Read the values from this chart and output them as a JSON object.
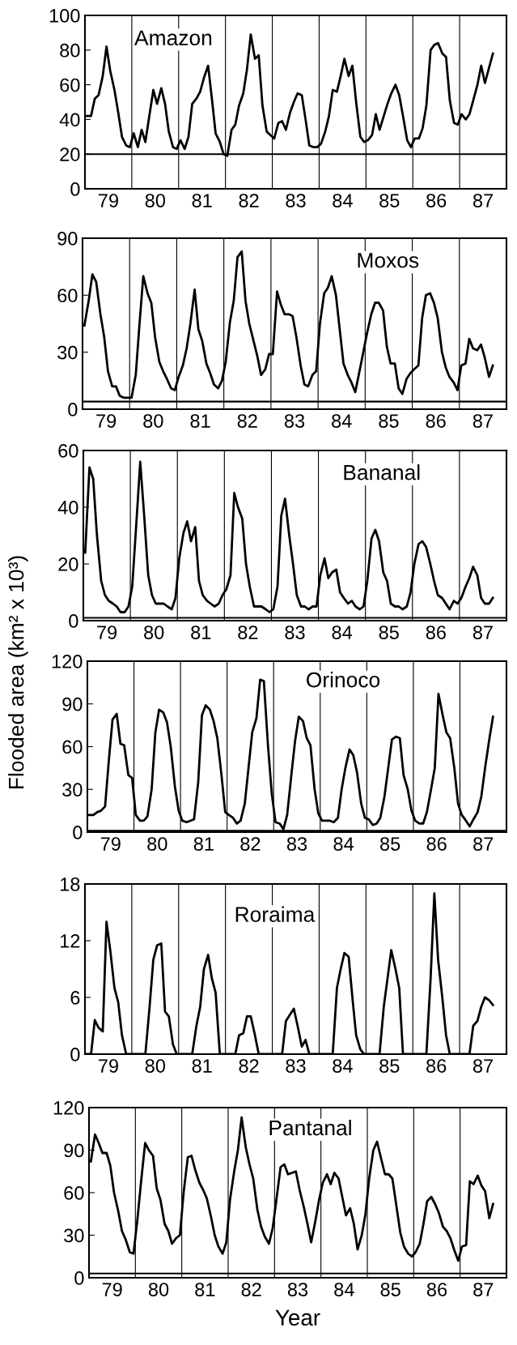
{
  "chart_data": [
    {
      "type": "line",
      "title": "Amazon",
      "xlim": [
        79,
        88
      ],
      "ylim": [
        0,
        100
      ],
      "yticks": [
        0,
        20,
        40,
        60,
        80,
        100
      ],
      "xticks": [
        {
          "value": 79.5,
          "label": "79"
        },
        {
          "value": 80.5,
          "label": "80"
        },
        {
          "value": 81.5,
          "label": "81"
        },
        {
          "value": 82.5,
          "label": "82"
        },
        {
          "value": 83.5,
          "label": "83"
        },
        {
          "value": 84.5,
          "label": "84"
        },
        {
          "value": 85.5,
          "label": "85"
        },
        {
          "value": 86.5,
          "label": "86"
        },
        {
          "value": 87.5,
          "label": "87"
        }
      ],
      "x": [
        79.04,
        79.13,
        79.21,
        79.29,
        79.38,
        79.46,
        79.54,
        79.63,
        79.71,
        79.79,
        79.88,
        79.96,
        80.04,
        80.13,
        80.21,
        80.29,
        80.38,
        80.46,
        80.54,
        80.63,
        80.71,
        80.79,
        80.88,
        80.96,
        81.04,
        81.13,
        81.21,
        81.29,
        81.38,
        81.46,
        81.54,
        81.63,
        81.71,
        81.79,
        81.88,
        81.96,
        82.04,
        82.13,
        82.21,
        82.29,
        82.38,
        82.46,
        82.54,
        82.63,
        82.71,
        82.79,
        82.88,
        82.96,
        83.04,
        83.13,
        83.21,
        83.29,
        83.38,
        83.46,
        83.54,
        83.63,
        83.71,
        83.79,
        83.88,
        83.96,
        84.04,
        84.13,
        84.21,
        84.29,
        84.38,
        84.46,
        84.54,
        84.63,
        84.71,
        84.79,
        84.88,
        84.96,
        85.04,
        85.13,
        85.21,
        85.29,
        85.38,
        85.46,
        85.54,
        85.63,
        85.71,
        85.79,
        85.88,
        85.96,
        86.04,
        86.13,
        86.21,
        86.29,
        86.38,
        86.46,
        86.54,
        86.63,
        86.71,
        86.79,
        86.88,
        86.96,
        87.04,
        87.13,
        87.21,
        87.29,
        87.38,
        87.46,
        87.54,
        87.63,
        87.71
      ],
      "series": [
        {
          "color": "#000000",
          "values": [
            42,
            42,
            52,
            54,
            65,
            82,
            68,
            57,
            44,
            30,
            25,
            24,
            32,
            24,
            34,
            27,
            43,
            57,
            49,
            58,
            49,
            33,
            24,
            23,
            28,
            23,
            30,
            49,
            52,
            56,
            64,
            71,
            52,
            32,
            27,
            20,
            19,
            34,
            37,
            48,
            55,
            69,
            89,
            75,
            77,
            48,
            33,
            31,
            29,
            38,
            39,
            34,
            44,
            50,
            55,
            54,
            40,
            25,
            24,
            24,
            26,
            33,
            42,
            57,
            56,
            65,
            75,
            65,
            71,
            50,
            30,
            27,
            28,
            31,
            43,
            34,
            42,
            49,
            55,
            60,
            54,
            42,
            28,
            24,
            29,
            29,
            35,
            48,
            80,
            83,
            84,
            78,
            76,
            51,
            38,
            37,
            43,
            40,
            43,
            51,
            60,
            71,
            61,
            70,
            78
          ]
        }
      ],
      "ref_lines": [
        {
          "axis": "y",
          "value": 20,
          "color": "#000000"
        },
        {
          "axis": "x",
          "value": 80,
          "color": "#000000"
        },
        {
          "axis": "x",
          "value": 81,
          "color": "#000000"
        },
        {
          "axis": "x",
          "value": 82,
          "color": "#000000"
        },
        {
          "axis": "x",
          "value": 83,
          "color": "#000000"
        },
        {
          "axis": "x",
          "value": 84,
          "color": "#000000"
        },
        {
          "axis": "x",
          "value": 85,
          "color": "#000000"
        },
        {
          "axis": "x",
          "value": 86,
          "color": "#000000"
        },
        {
          "axis": "x",
          "value": 87,
          "color": "#000000"
        }
      ]
    },
    {
      "type": "line",
      "title": "Moxos",
      "xlim": [
        79,
        88
      ],
      "ylim": [
        0,
        90
      ],
      "yticks": [
        0,
        30,
        60,
        90
      ],
      "xticks": [
        {
          "value": 79.5,
          "label": "79"
        },
        {
          "value": 80.5,
          "label": "80"
        },
        {
          "value": 81.5,
          "label": "81"
        },
        {
          "value": 82.5,
          "label": "82"
        },
        {
          "value": 83.5,
          "label": "83"
        },
        {
          "value": 84.5,
          "label": "84"
        },
        {
          "value": 85.5,
          "label": "85"
        },
        {
          "value": 86.5,
          "label": "86"
        },
        {
          "value": 87.5,
          "label": "87"
        }
      ],
      "x": [
        79.04,
        79.13,
        79.21,
        79.29,
        79.38,
        79.46,
        79.54,
        79.63,
        79.71,
        79.79,
        79.88,
        79.96,
        80.04,
        80.13,
        80.21,
        80.29,
        80.38,
        80.46,
        80.54,
        80.63,
        80.71,
        80.79,
        80.88,
        80.96,
        81.04,
        81.13,
        81.21,
        81.29,
        81.38,
        81.46,
        81.54,
        81.63,
        81.71,
        81.79,
        81.88,
        81.96,
        82.04,
        82.13,
        82.21,
        82.29,
        82.38,
        82.46,
        82.54,
        82.63,
        82.71,
        82.79,
        82.88,
        82.96,
        83.04,
        83.13,
        83.21,
        83.29,
        83.38,
        83.46,
        83.54,
        83.63,
        83.71,
        83.79,
        83.88,
        83.96,
        84.04,
        84.13,
        84.21,
        84.29,
        84.38,
        84.46,
        84.54,
        84.63,
        84.71,
        84.79,
        84.88,
        84.96,
        85.04,
        85.13,
        85.21,
        85.29,
        85.38,
        85.46,
        85.54,
        85.63,
        85.71,
        85.79,
        85.88,
        85.96,
        86.04,
        86.13,
        86.21,
        86.29,
        86.38,
        86.46,
        86.54,
        86.63,
        86.71,
        86.79,
        86.88,
        86.96,
        87.04,
        87.13,
        87.21,
        87.29,
        87.38,
        87.46,
        87.54,
        87.63,
        87.71
      ],
      "series": [
        {
          "color": "#000000",
          "values": [
            44,
            57,
            71,
            67,
            50,
            38,
            20,
            12,
            12,
            7,
            6,
            6,
            6,
            18,
            45,
            70,
            61,
            56,
            38,
            25,
            20,
            16,
            11,
            10,
            17,
            23,
            32,
            45,
            63,
            42,
            36,
            24,
            19,
            13,
            11,
            15,
            25,
            46,
            57,
            80,
            83,
            57,
            45,
            36,
            28,
            18,
            21,
            29,
            29,
            62,
            55,
            50,
            50,
            49,
            38,
            23,
            13,
            12,
            18,
            20,
            45,
            61,
            64,
            70,
            60,
            42,
            24,
            18,
            14,
            9,
            20,
            30,
            40,
            50,
            56,
            56,
            52,
            33,
            24,
            24,
            11,
            8,
            16,
            19,
            21,
            23,
            48,
            60,
            61,
            56,
            48,
            30,
            22,
            17,
            14,
            10,
            23,
            24,
            37,
            32,
            31,
            34,
            27,
            17,
            23
          ]
        }
      ],
      "ref_lines": [
        {
          "axis": "y",
          "value": 4,
          "color": "#000000"
        },
        {
          "axis": "x",
          "value": 80,
          "color": "#000000"
        },
        {
          "axis": "x",
          "value": 81,
          "color": "#000000"
        },
        {
          "axis": "x",
          "value": 82,
          "color": "#000000"
        },
        {
          "axis": "x",
          "value": 83,
          "color": "#000000"
        },
        {
          "axis": "x",
          "value": 84,
          "color": "#000000"
        },
        {
          "axis": "x",
          "value": 85,
          "color": "#000000"
        },
        {
          "axis": "x",
          "value": 86,
          "color": "#000000"
        },
        {
          "axis": "x",
          "value": 87,
          "color": "#000000"
        }
      ]
    },
    {
      "type": "line",
      "title": "Bananal",
      "xlim": [
        79,
        88
      ],
      "ylim": [
        0,
        60
      ],
      "yticks": [
        0,
        20,
        40,
        60
      ],
      "xticks": [
        {
          "value": 79.5,
          "label": "79"
        },
        {
          "value": 80.5,
          "label": "80"
        },
        {
          "value": 81.5,
          "label": "81"
        },
        {
          "value": 82.5,
          "label": "82"
        },
        {
          "value": 83.5,
          "label": "83"
        },
        {
          "value": 84.5,
          "label": "84"
        },
        {
          "value": 85.5,
          "label": "85"
        },
        {
          "value": 86.5,
          "label": "86"
        },
        {
          "value": 87.5,
          "label": "87"
        }
      ],
      "x": [
        79.04,
        79.13,
        79.21,
        79.29,
        79.38,
        79.46,
        79.54,
        79.63,
        79.71,
        79.79,
        79.88,
        79.96,
        80.04,
        80.13,
        80.21,
        80.29,
        80.38,
        80.46,
        80.54,
        80.63,
        80.71,
        80.79,
        80.88,
        80.96,
        81.04,
        81.13,
        81.21,
        81.29,
        81.38,
        81.46,
        81.54,
        81.63,
        81.71,
        81.79,
        81.88,
        81.96,
        82.04,
        82.13,
        82.21,
        82.29,
        82.38,
        82.46,
        82.54,
        82.63,
        82.71,
        82.79,
        82.88,
        82.96,
        83.04,
        83.13,
        83.21,
        83.29,
        83.38,
        83.46,
        83.54,
        83.63,
        83.71,
        83.79,
        83.88,
        83.96,
        84.04,
        84.13,
        84.21,
        84.29,
        84.38,
        84.46,
        84.54,
        84.63,
        84.71,
        84.79,
        84.88,
        84.96,
        85.04,
        85.13,
        85.21,
        85.29,
        85.38,
        85.46,
        85.54,
        85.63,
        85.71,
        85.79,
        85.88,
        85.96,
        86.04,
        86.13,
        86.21,
        86.29,
        86.38,
        86.46,
        86.54,
        86.63,
        86.71,
        86.79,
        86.88,
        86.96,
        87.04,
        87.13,
        87.21,
        87.29,
        87.38,
        87.46,
        87.54,
        87.63,
        87.71
      ],
      "series": [
        {
          "color": "#000000",
          "values": [
            24,
            54,
            50,
            30,
            14,
            9,
            7,
            6,
            5,
            3,
            3,
            5,
            12,
            35,
            56,
            38,
            16,
            9,
            6,
            6,
            6,
            5,
            4,
            8,
            22,
            31,
            35,
            28,
            33,
            14,
            9,
            7,
            6,
            5,
            6,
            9,
            11,
            16,
            45,
            40,
            36,
            20,
            12,
            5,
            5,
            5,
            4,
            3,
            4,
            12,
            37,
            43,
            30,
            20,
            9,
            5,
            5,
            4,
            5,
            5,
            16,
            22,
            15,
            17,
            18,
            10,
            8,
            6,
            7,
            5,
            4,
            5,
            14,
            29,
            32,
            28,
            17,
            14,
            6,
            5,
            5,
            4,
            5,
            10,
            20,
            27,
            28,
            26,
            20,
            14,
            9,
            8,
            6,
            4,
            7,
            6,
            8,
            12,
            15,
            19,
            16,
            8,
            6,
            6,
            8
          ]
        }
      ],
      "ref_lines": [
        {
          "axis": "y",
          "value": 1,
          "color": "#000000"
        },
        {
          "axis": "x",
          "value": 80,
          "color": "#000000"
        },
        {
          "axis": "x",
          "value": 81,
          "color": "#000000"
        },
        {
          "axis": "x",
          "value": 82,
          "color": "#000000"
        },
        {
          "axis": "x",
          "value": 83,
          "color": "#000000"
        },
        {
          "axis": "x",
          "value": 84,
          "color": "#000000"
        },
        {
          "axis": "x",
          "value": 85,
          "color": "#000000"
        },
        {
          "axis": "x",
          "value": 86,
          "color": "#000000"
        },
        {
          "axis": "x",
          "value": 87,
          "color": "#000000"
        }
      ]
    },
    {
      "type": "line",
      "title": "Orinoco",
      "ylabel": "Flooded area (km² x 10³)",
      "xlim": [
        79,
        88
      ],
      "ylim": [
        0,
        120
      ],
      "yticks": [
        0,
        30,
        60,
        90,
        120
      ],
      "xticks": [
        {
          "value": 79.5,
          "label": "79"
        },
        {
          "value": 80.5,
          "label": "80"
        },
        {
          "value": 81.5,
          "label": "81"
        },
        {
          "value": 82.5,
          "label": "82"
        },
        {
          "value": 83.5,
          "label": "83"
        },
        {
          "value": 84.5,
          "label": "84"
        },
        {
          "value": 85.5,
          "label": "85"
        },
        {
          "value": 86.5,
          "label": "86"
        },
        {
          "value": 87.5,
          "label": "87"
        }
      ],
      "x": [
        79.04,
        79.13,
        79.21,
        79.29,
        79.38,
        79.46,
        79.54,
        79.63,
        79.71,
        79.79,
        79.88,
        79.96,
        80.04,
        80.13,
        80.21,
        80.29,
        80.38,
        80.46,
        80.54,
        80.63,
        80.71,
        80.79,
        80.88,
        80.96,
        81.04,
        81.13,
        81.21,
        81.29,
        81.38,
        81.46,
        81.54,
        81.63,
        81.71,
        81.79,
        81.88,
        81.96,
        82.04,
        82.13,
        82.21,
        82.29,
        82.38,
        82.46,
        82.54,
        82.63,
        82.71,
        82.79,
        82.88,
        82.96,
        83.04,
        83.13,
        83.21,
        83.29,
        83.38,
        83.46,
        83.54,
        83.63,
        83.71,
        83.79,
        83.88,
        83.96,
        84.04,
        84.13,
        84.21,
        84.29,
        84.38,
        84.46,
        84.54,
        84.63,
        84.71,
        84.79,
        84.88,
        84.96,
        85.04,
        85.13,
        85.21,
        85.29,
        85.38,
        85.46,
        85.54,
        85.63,
        85.71,
        85.79,
        85.88,
        85.96,
        86.04,
        86.13,
        86.21,
        86.29,
        86.38,
        86.46,
        86.54,
        86.63,
        86.71,
        86.79,
        86.88,
        86.96,
        87.04,
        87.13,
        87.21,
        87.29,
        87.38,
        87.46,
        87.54,
        87.63,
        87.71
      ],
      "series": [
        {
          "color": "#000000",
          "values": [
            12,
            12,
            14,
            15,
            18,
            50,
            79,
            83,
            62,
            61,
            40,
            38,
            12,
            8,
            8,
            11,
            30,
            70,
            86,
            84,
            77,
            60,
            32,
            15,
            8,
            7,
            8,
            9,
            35,
            82,
            89,
            86,
            78,
            66,
            40,
            14,
            12,
            10,
            6,
            8,
            20,
            45,
            70,
            80,
            107,
            106,
            60,
            27,
            7,
            6,
            2,
            12,
            40,
            64,
            81,
            78,
            66,
            61,
            30,
            13,
            8,
            8,
            8,
            7,
            10,
            30,
            45,
            58,
            54,
            42,
            20,
            10,
            9,
            5,
            6,
            10,
            25,
            45,
            65,
            67,
            66,
            40,
            30,
            15,
            8,
            6,
            6,
            14,
            30,
            45,
            97,
            82,
            70,
            66,
            45,
            20,
            12,
            8,
            4,
            9,
            14,
            25,
            45,
            65,
            81
          ]
        }
      ],
      "ref_lines": [
        {
          "axis": "y",
          "value": 1,
          "color": "#000000"
        },
        {
          "axis": "x",
          "value": 80,
          "color": "#000000"
        },
        {
          "axis": "x",
          "value": 81,
          "color": "#000000"
        },
        {
          "axis": "x",
          "value": 82,
          "color": "#000000"
        },
        {
          "axis": "x",
          "value": 83,
          "color": "#000000"
        },
        {
          "axis": "x",
          "value": 84,
          "color": "#000000"
        },
        {
          "axis": "x",
          "value": 85,
          "color": "#000000"
        },
        {
          "axis": "x",
          "value": 86,
          "color": "#000000"
        },
        {
          "axis": "x",
          "value": 87,
          "color": "#000000"
        }
      ]
    },
    {
      "type": "line",
      "title": "Roraima",
      "xlim": [
        79,
        88
      ],
      "ylim": [
        0,
        18
      ],
      "yticks": [
        0,
        6,
        12,
        18
      ],
      "xticks": [
        {
          "value": 79.5,
          "label": "79"
        },
        {
          "value": 80.5,
          "label": "80"
        },
        {
          "value": 81.5,
          "label": "81"
        },
        {
          "value": 82.5,
          "label": "82"
        },
        {
          "value": 83.5,
          "label": "83"
        },
        {
          "value": 84.5,
          "label": "84"
        },
        {
          "value": 85.5,
          "label": "85"
        },
        {
          "value": 86.5,
          "label": "86"
        },
        {
          "value": 87.5,
          "label": "87"
        }
      ],
      "x": [
        79.04,
        79.13,
        79.21,
        79.29,
        79.38,
        79.46,
        79.54,
        79.63,
        79.71,
        79.79,
        79.88,
        79.96,
        80.04,
        80.13,
        80.21,
        80.29,
        80.38,
        80.46,
        80.54,
        80.63,
        80.71,
        80.79,
        80.88,
        80.96,
        81.04,
        81.13,
        81.21,
        81.29,
        81.38,
        81.46,
        81.54,
        81.63,
        81.71,
        81.79,
        81.88,
        81.96,
        82.04,
        82.13,
        82.21,
        82.29,
        82.38,
        82.46,
        82.54,
        82.63,
        82.71,
        82.79,
        82.88,
        82.96,
        83.04,
        83.13,
        83.21,
        83.29,
        83.38,
        83.46,
        83.54,
        83.63,
        83.71,
        83.79,
        83.88,
        83.96,
        84.04,
        84.13,
        84.21,
        84.29,
        84.38,
        84.46,
        84.54,
        84.63,
        84.71,
        84.79,
        84.88,
        84.96,
        85.04,
        85.13,
        85.21,
        85.29,
        85.38,
        85.46,
        85.54,
        85.63,
        85.71,
        85.79,
        85.88,
        85.96,
        86.04,
        86.13,
        86.21,
        86.29,
        86.38,
        86.46,
        86.54,
        86.63,
        86.71,
        86.79,
        86.88,
        86.96,
        87.04,
        87.13,
        87.21,
        87.29,
        87.38,
        87.46,
        87.54,
        87.63,
        87.71
      ],
      "series": [
        {
          "color": "#000000",
          "values": [
            0,
            0,
            3.6,
            2.8,
            2.4,
            14,
            11,
            7,
            5.5,
            2,
            0,
            0,
            0,
            0,
            0,
            0,
            5,
            10,
            11.5,
            11.7,
            4.5,
            4,
            1,
            0,
            0,
            0,
            0,
            0,
            3,
            5,
            9,
            10.5,
            8,
            6.5,
            0,
            0,
            0,
            0,
            0,
            2,
            2.2,
            4,
            4,
            2,
            0,
            0,
            0,
            0,
            0,
            0,
            0,
            3.5,
            4.2,
            4.8,
            3,
            0.8,
            1.5,
            0,
            0,
            0,
            0,
            0,
            0,
            0,
            7,
            9,
            10.7,
            10.3,
            6,
            2,
            0.5,
            0,
            0,
            0,
            0,
            0,
            5,
            8,
            11,
            9,
            7,
            0,
            0,
            0,
            0,
            0,
            0,
            0,
            8,
            17,
            10,
            6,
            2,
            0,
            0,
            0,
            0,
            0,
            0,
            3,
            3.5,
            5,
            6,
            5.7,
            5.2
          ]
        }
      ],
      "ref_lines": [
        {
          "axis": "x",
          "value": 80,
          "color": "#000000"
        },
        {
          "axis": "x",
          "value": 81,
          "color": "#000000"
        },
        {
          "axis": "x",
          "value": 82,
          "color": "#000000"
        },
        {
          "axis": "x",
          "value": 83,
          "color": "#000000"
        },
        {
          "axis": "x",
          "value": 84,
          "color": "#000000"
        },
        {
          "axis": "x",
          "value": 85,
          "color": "#000000"
        },
        {
          "axis": "x",
          "value": 86,
          "color": "#000000"
        },
        {
          "axis": "x",
          "value": 87,
          "color": "#000000"
        }
      ]
    },
    {
      "type": "line",
      "title": "Pantanal",
      "xlabel": "Year",
      "xlim": [
        79,
        88
      ],
      "ylim": [
        0,
        120
      ],
      "yticks": [
        0,
        30,
        60,
        90,
        120
      ],
      "xticks": [
        {
          "value": 79.5,
          "label": "79"
        },
        {
          "value": 80.5,
          "label": "80"
        },
        {
          "value": 81.5,
          "label": "81"
        },
        {
          "value": 82.5,
          "label": "82"
        },
        {
          "value": 83.5,
          "label": "83"
        },
        {
          "value": 84.5,
          "label": "84"
        },
        {
          "value": 85.5,
          "label": "85"
        },
        {
          "value": 86.5,
          "label": "86"
        },
        {
          "value": 87.5,
          "label": "87"
        }
      ],
      "x": [
        79.04,
        79.13,
        79.21,
        79.29,
        79.38,
        79.46,
        79.54,
        79.63,
        79.71,
        79.79,
        79.88,
        79.96,
        80.04,
        80.13,
        80.21,
        80.29,
        80.38,
        80.46,
        80.54,
        80.63,
        80.71,
        80.79,
        80.88,
        80.96,
        81.04,
        81.13,
        81.21,
        81.29,
        81.38,
        81.46,
        81.54,
        81.63,
        81.71,
        81.79,
        81.88,
        81.96,
        82.04,
        82.13,
        82.21,
        82.29,
        82.38,
        82.46,
        82.54,
        82.63,
        82.71,
        82.79,
        82.88,
        82.96,
        83.04,
        83.13,
        83.21,
        83.29,
        83.38,
        83.46,
        83.54,
        83.63,
        83.71,
        83.79,
        83.88,
        83.96,
        84.04,
        84.13,
        84.21,
        84.29,
        84.38,
        84.46,
        84.54,
        84.63,
        84.71,
        84.79,
        84.88,
        84.96,
        85.04,
        85.13,
        85.21,
        85.29,
        85.38,
        85.46,
        85.54,
        85.63,
        85.71,
        85.79,
        85.88,
        85.96,
        86.04,
        86.13,
        86.21,
        86.29,
        86.38,
        86.46,
        86.54,
        86.63,
        86.71,
        86.79,
        86.88,
        86.96,
        87.04,
        87.13,
        87.21,
        87.29,
        87.38,
        87.46,
        87.54,
        87.63,
        87.71
      ],
      "series": [
        {
          "color": "#000000",
          "values": [
            82,
            101,
            95,
            88,
            88,
            79,
            60,
            47,
            33,
            27,
            18,
            17,
            40,
            70,
            95,
            90,
            86,
            63,
            55,
            38,
            33,
            24,
            28,
            30,
            60,
            85,
            86,
            76,
            67,
            62,
            56,
            43,
            30,
            22,
            17,
            25,
            55,
            75,
            90,
            113,
            92,
            80,
            70,
            48,
            36,
            29,
            24,
            35,
            55,
            78,
            80,
            73,
            74,
            75,
            62,
            50,
            38,
            25,
            40,
            55,
            67,
            73,
            66,
            74,
            70,
            57,
            44,
            49,
            38,
            20,
            30,
            45,
            70,
            90,
            96,
            85,
            73,
            73,
            70,
            50,
            32,
            22,
            17,
            15,
            18,
            24,
            38,
            54,
            57,
            52,
            46,
            36,
            33,
            28,
            19,
            12,
            22,
            23,
            68,
            66,
            72,
            65,
            61,
            42,
            52
          ]
        }
      ],
      "ref_lines": [
        {
          "axis": "y",
          "value": 3,
          "color": "#000000"
        },
        {
          "axis": "x",
          "value": 80,
          "color": "#000000"
        },
        {
          "axis": "x",
          "value": 81,
          "color": "#000000"
        },
        {
          "axis": "x",
          "value": 82,
          "color": "#000000"
        },
        {
          "axis": "x",
          "value": 83,
          "color": "#000000"
        },
        {
          "axis": "x",
          "value": 84,
          "color": "#000000"
        },
        {
          "axis": "x",
          "value": 85,
          "color": "#000000"
        },
        {
          "axis": "x",
          "value": 86,
          "color": "#000000"
        },
        {
          "axis": "x",
          "value": 87,
          "color": "#000000"
        }
      ]
    }
  ]
}
